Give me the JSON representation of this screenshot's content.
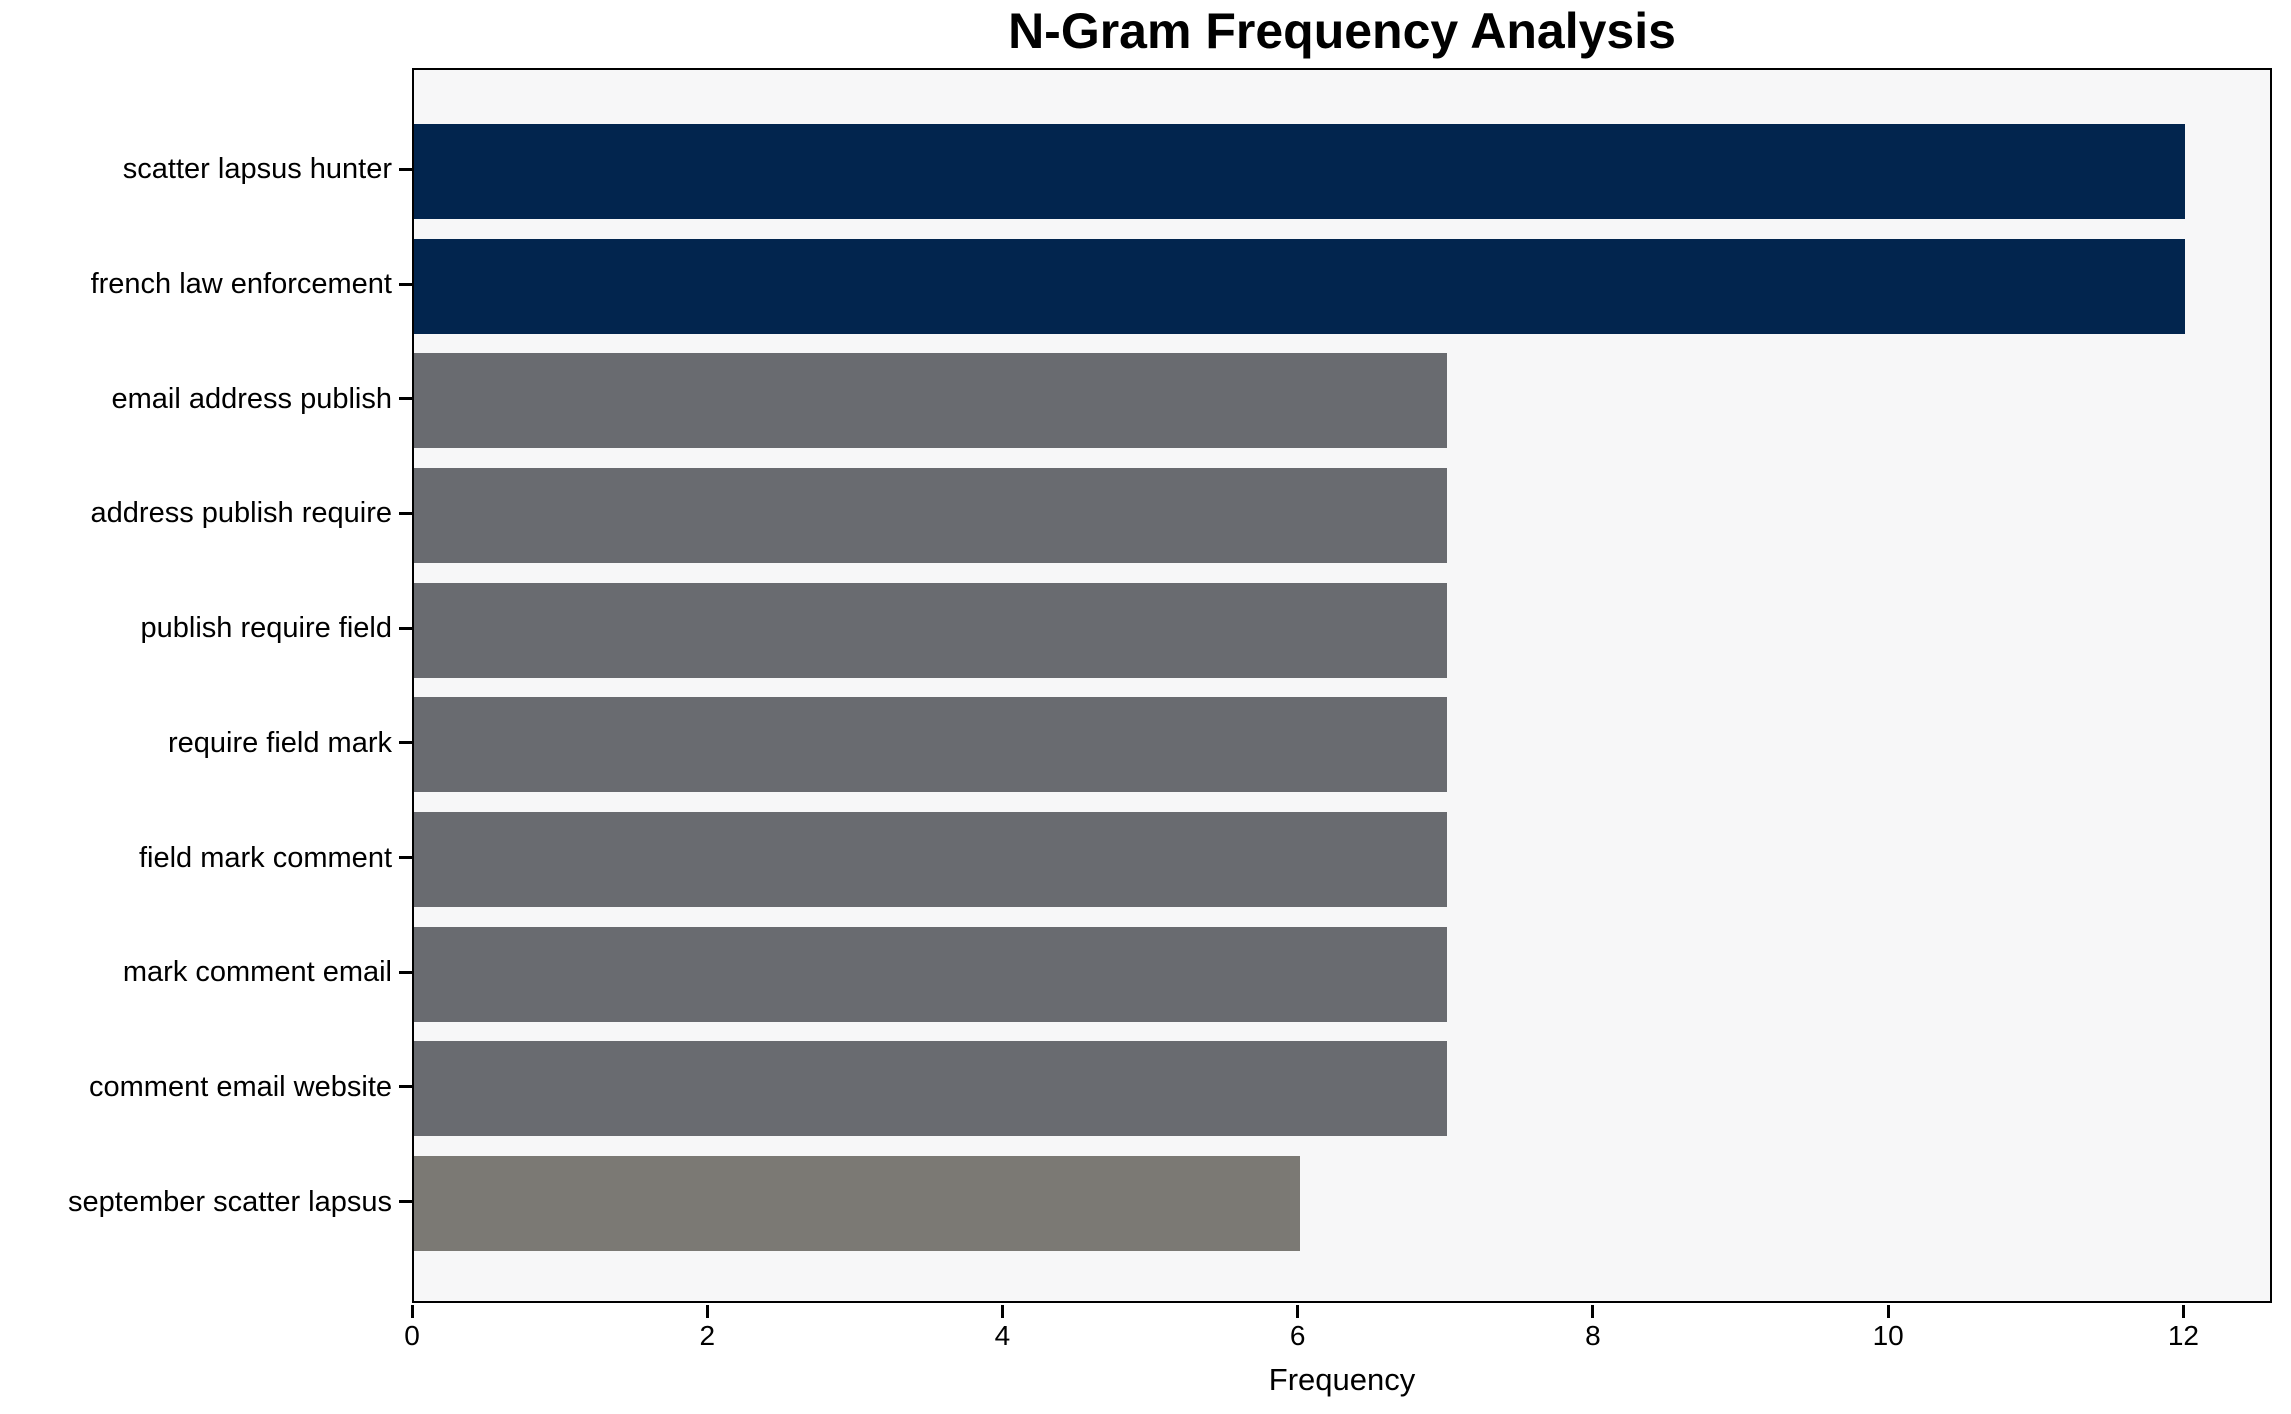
{
  "chart_data": {
    "type": "bar",
    "orientation": "horizontal",
    "title": "N-Gram Frequency Analysis",
    "xlabel": "Frequency",
    "ylabel": "",
    "categories": [
      "scatter lapsus hunter",
      "french law enforcement",
      "email address publish",
      "address publish require",
      "publish require field",
      "require field mark",
      "field mark comment",
      "mark comment email",
      "comment email website",
      "september scatter lapsus"
    ],
    "values": [
      12,
      12,
      7,
      7,
      7,
      7,
      7,
      7,
      7,
      6
    ],
    "bar_colors": [
      "#02254E",
      "#02254E",
      "#696B70",
      "#696B70",
      "#696B70",
      "#696B70",
      "#696B70",
      "#696B70",
      "#696B70",
      "#7B7974"
    ],
    "x_ticks": [
      0,
      2,
      4,
      6,
      8,
      10,
      12
    ],
    "xlim": [
      0,
      12.6
    ],
    "grid": false,
    "legend": null,
    "colors": {
      "plot_background": "#F7F7F8",
      "figure_background": "#FFFFFF",
      "spine": "#000000",
      "text": "#000000"
    }
  }
}
